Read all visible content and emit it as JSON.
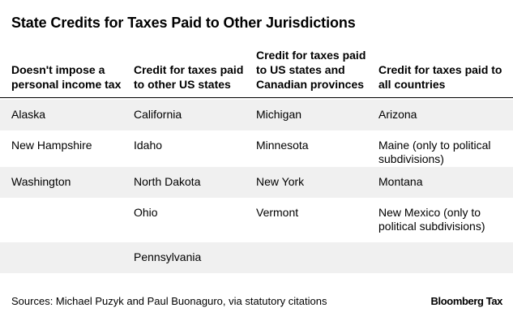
{
  "title": "State Credits for Taxes Paid to Other Jurisdictions",
  "headers": [
    "Doesn't impose a personal income tax",
    "Credit for taxes paid to other US states",
    "Credit for taxes paid to US states and Canadian provinces",
    "Credit for taxes paid to all countries"
  ],
  "rows": [
    [
      "Alaska",
      "California",
      "Michigan",
      "Arizona"
    ],
    [
      "New Hampshire",
      "Idaho",
      "Minnesota",
      "Maine (only to political subdivisions)"
    ],
    [
      "Washington",
      "North Dakota",
      "New York",
      "Montana"
    ],
    [
      "",
      "Ohio",
      "Vermont",
      "New Mexico (only to political subdivisions)"
    ],
    [
      "",
      "Pennsylvania",
      "",
      ""
    ]
  ],
  "footer": "Sources: Michael Puzyk and Paul Buonaguro, via statutory citations",
  "brand": "Bloomberg Tax",
  "colors": {
    "row_shade": "#f0f0f0",
    "text": "#000000"
  }
}
